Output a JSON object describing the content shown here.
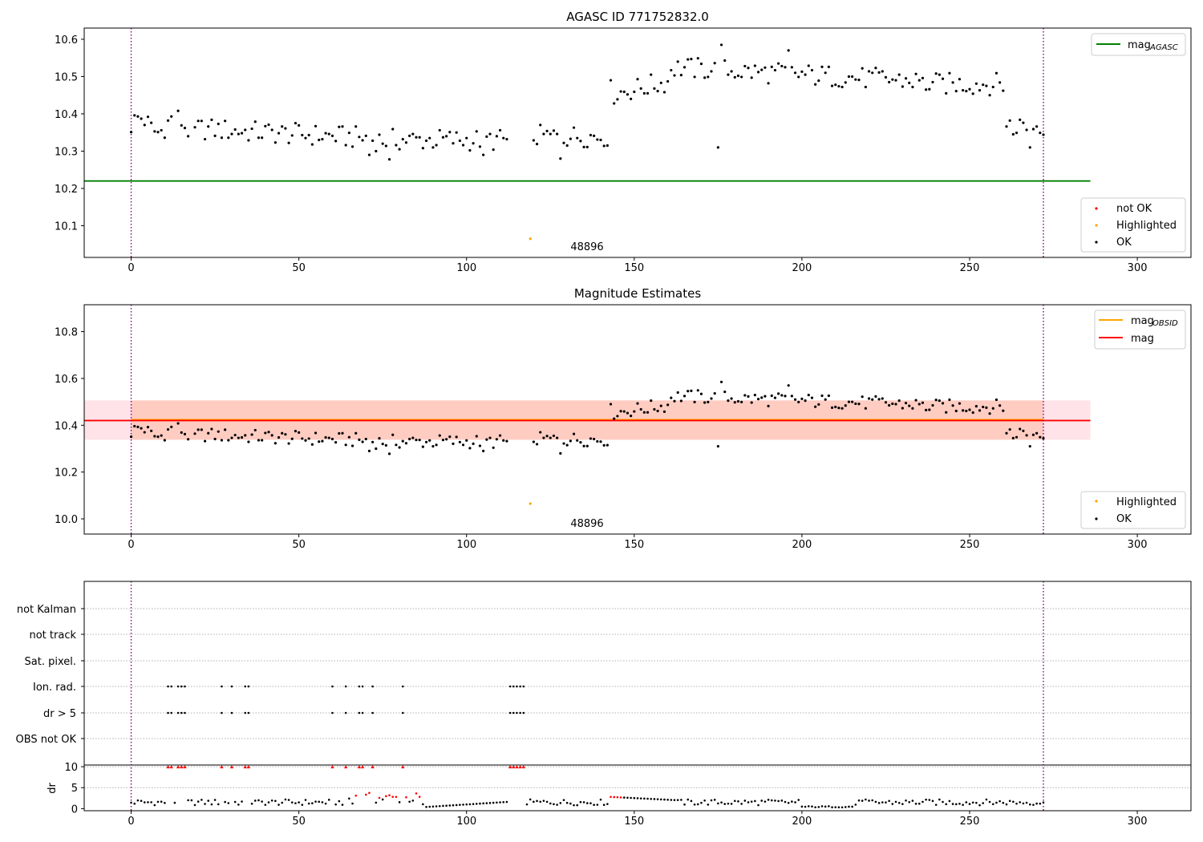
{
  "chart_data": [
    {
      "type": "scatter",
      "title": "AGASC ID 771752832.0",
      "xlim": [
        -14,
        316
      ],
      "ylim": [
        10.015,
        10.63
      ],
      "xticks": [
        0,
        50,
        100,
        150,
        200,
        250,
        300
      ],
      "yticks": [
        10.1,
        10.2,
        10.3,
        10.4,
        10.5,
        10.6
      ],
      "ytick_labels": [
        "10.1",
        "10.2",
        "10.3",
        "10.4",
        "10.5",
        "10.6"
      ],
      "vlines": [
        0,
        272
      ],
      "hline": {
        "name": "mag",
        "subscript": "AGASC",
        "value": 10.22,
        "x_range": [
          -14,
          286
        ],
        "color": "#008000"
      },
      "series": [
        {
          "name": "not OK",
          "color": "#ff0000",
          "points": []
        },
        {
          "name": "Highlighted",
          "color": "#ffa500",
          "points": [
            [
              119,
              10.065
            ]
          ]
        },
        {
          "name": "OK",
          "color": "#000000"
        }
      ],
      "annotations": [
        {
          "text": "48896",
          "x": 137,
          "y": 10.035
        }
      ],
      "legend": "top-right and lower-right"
    },
    {
      "type": "scatter",
      "title": "Magnitude Estimates",
      "xlim": [
        -14,
        316
      ],
      "ylim": [
        9.935,
        10.915
      ],
      "xticks": [
        0,
        50,
        100,
        150,
        200,
        250,
        300
      ],
      "yticks": [
        10.0,
        10.2,
        10.4,
        10.6,
        10.8
      ],
      "ytick_labels": [
        "10.0",
        "10.2",
        "10.4",
        "10.6",
        "10.8"
      ],
      "vlines": [
        0,
        272
      ],
      "hlines": [
        {
          "name": "mag",
          "subscript": "OBSID",
          "value": 10.424,
          "x_range": [
            0,
            272
          ],
          "color": "#ffa500"
        },
        {
          "name": "mag",
          "value": 10.42,
          "x_range": [
            -14,
            286
          ],
          "color": "#ff0000"
        }
      ],
      "bands": [
        {
          "value_range": [
            10.338,
            10.506
          ],
          "x_range": [
            -14,
            286
          ],
          "color": "#ffc0cb"
        },
        {
          "value_range": [
            10.338,
            10.506
          ],
          "x_range": [
            0,
            272
          ],
          "color": "#ffa07a"
        }
      ],
      "series": [
        {
          "name": "Highlighted",
          "color": "#ffa500",
          "points": [
            [
              119,
              10.065
            ]
          ]
        },
        {
          "name": "OK",
          "color": "#000000"
        }
      ],
      "annotations": [
        {
          "text": "48896",
          "x": 137,
          "y": 9.965
        }
      ],
      "legend": "top-right and lower-right"
    },
    {
      "type": "scatter",
      "xlim": [
        -14,
        316
      ],
      "xticks": [
        0,
        50,
        100,
        150,
        200,
        250,
        300
      ],
      "flag_rows": [
        "not Kalman",
        "not track",
        "Sat. pixel.",
        "Ion. rad.",
        "dr > 5",
        "OBS not OK"
      ],
      "flags": {
        "Ion. rad.": [
          11,
          12,
          14,
          15,
          16,
          27,
          30,
          34,
          35,
          60,
          64,
          68,
          69,
          72,
          81,
          113,
          114,
          115,
          116,
          117
        ],
        "dr > 5": [
          11,
          12,
          14,
          15,
          16,
          27,
          30,
          34,
          35,
          60,
          64,
          68,
          69,
          72,
          81,
          113,
          114,
          115,
          116,
          117
        ]
      },
      "dr_axis": {
        "ylabel": "dr",
        "ylim": [
          -0.5,
          10.4
        ],
        "yticks": [
          0,
          5,
          10
        ],
        "ytick_labels": [
          "0",
          "5",
          "10"
        ],
        "threshold": 5
      }
    }
  ]
}
